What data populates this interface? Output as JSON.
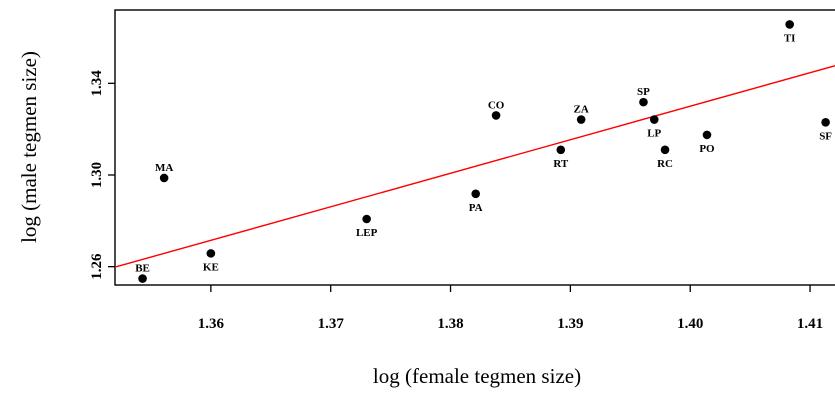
{
  "chart_data": {
    "type": "scatter",
    "title": "",
    "xlabel": "log (female tegmen size)",
    "ylabel": "log (male tegmen size)",
    "xlim": [
      1.352,
      1.4125
    ],
    "ylim": [
      1.252,
      1.372
    ],
    "x_ticks": [
      {
        "value": 1.36,
        "label": "1.36"
      },
      {
        "value": 1.37,
        "label": "1.37"
      },
      {
        "value": 1.38,
        "label": "1.38"
      },
      {
        "value": 1.39,
        "label": "1.39"
      },
      {
        "value": 1.4,
        "label": "1.40"
      },
      {
        "value": 1.41,
        "label": "1.41"
      }
    ],
    "y_ticks": [
      {
        "value": 1.26,
        "label": "1.26"
      },
      {
        "value": 1.3,
        "label": "1.30"
      },
      {
        "value": 1.34,
        "label": "1.34"
      }
    ],
    "points": [
      {
        "label": "BE",
        "x": 1.3543,
        "y": 1.2548,
        "label_pos": "above"
      },
      {
        "label": "MA",
        "x": 1.3561,
        "y": 1.2987,
        "label_pos": "above"
      },
      {
        "label": "KE",
        "x": 1.36,
        "y": 1.2658,
        "label_pos": "below"
      },
      {
        "label": "LEP",
        "x": 1.373,
        "y": 1.2808,
        "label_pos": "below"
      },
      {
        "label": "PA",
        "x": 1.3821,
        "y": 1.2918,
        "label_pos": "below"
      },
      {
        "label": "CO",
        "x": 1.3838,
        "y": 1.326,
        "label_pos": "above"
      },
      {
        "label": "RT",
        "x": 1.3892,
        "y": 1.311,
        "label_pos": "below"
      },
      {
        "label": "ZA",
        "x": 1.3909,
        "y": 1.3242,
        "label_pos": "above"
      },
      {
        "label": "SP",
        "x": 1.3961,
        "y": 1.3318,
        "label_pos": "above"
      },
      {
        "label": "LP",
        "x": 1.397,
        "y": 1.3242,
        "label_pos": "below"
      },
      {
        "label": "RC",
        "x": 1.3979,
        "y": 1.311,
        "label_pos": "below"
      },
      {
        "label": "PO",
        "x": 1.4014,
        "y": 1.3175,
        "label_pos": "below"
      },
      {
        "label": "TI",
        "x": 1.4083,
        "y": 1.3657,
        "label_pos": "below"
      },
      {
        "label": "SF",
        "x": 1.4113,
        "y": 1.323,
        "label_pos": "below"
      }
    ],
    "regression_line": {
      "color": "#ff0000",
      "x": [
        1.352,
        1.4125
      ],
      "y": [
        1.2598,
        1.3483
      ]
    },
    "point_color": "#000000",
    "grid": false,
    "legend": "none"
  }
}
